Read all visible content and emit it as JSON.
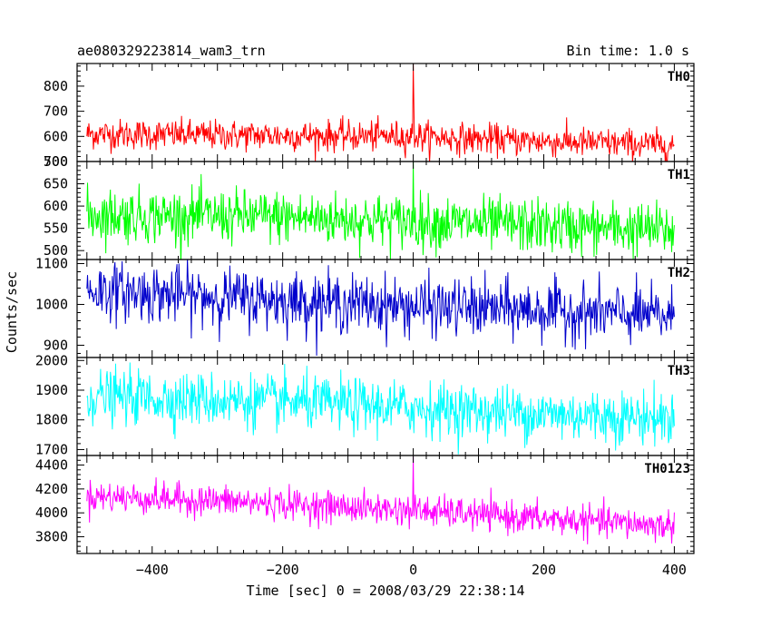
{
  "chart_data": {
    "type": "line",
    "title_left": "ae080329223814_wam3_trn",
    "title_right": "Bin time: 1.0 s",
    "xlabel": "Time [sec] 0 = 2008/03/29 22:38:14",
    "ylabel": "Counts/sec",
    "xlim": [
      -515,
      430
    ],
    "x_range_data": [
      -500,
      400
    ],
    "x_ticks": [
      -400,
      -200,
      0,
      200,
      400
    ],
    "x_tick_labels": [
      "−400",
      "−200",
      "0",
      "200",
      "400"
    ],
    "grid": false,
    "legend": "none",
    "panels": [
      {
        "name": "TH0",
        "color": "#ff0000",
        "ylim": [
          500,
          890
        ],
        "y_ticks": [
          500,
          600,
          700,
          800
        ],
        "trend": {
          "x": [
            -500,
            -300,
            0,
            200,
            400
          ],
          "y": [
            610,
            605,
            600,
            580,
            565
          ]
        },
        "noise": 30,
        "spikes": [
          {
            "x": 0,
            "y": 890
          },
          {
            "x": 1,
            "y": 720
          }
        ]
      },
      {
        "name": "TH1",
        "color": "#00ff00",
        "ylim": [
          480,
          700
        ],
        "y_ticks": [
          500,
          550,
          600,
          650,
          700
        ],
        "trend": {
          "x": [
            -500,
            -200,
            0,
            200,
            400
          ],
          "y": [
            580,
            575,
            565,
            555,
            545
          ]
        },
        "noise": 30,
        "spikes": [
          {
            "x": 0,
            "y": 700
          }
        ]
      },
      {
        "name": "TH2",
        "color": "#0000cc",
        "ylim": [
          870,
          1110
        ],
        "y_ticks": [
          900,
          1000,
          1100
        ],
        "trend": {
          "x": [
            -500,
            -200,
            0,
            200,
            400
          ],
          "y": [
            1035,
            1010,
            995,
            985,
            970
          ]
        },
        "noise": 35,
        "spikes": []
      },
      {
        "name": "TH3",
        "color": "#00ffff",
        "ylim": [
          1680,
          2010
        ],
        "y_ticks": [
          1700,
          1800,
          1900,
          2000
        ],
        "trend": {
          "x": [
            -500,
            -200,
            0,
            200,
            400
          ],
          "y": [
            1880,
            1860,
            1840,
            1820,
            1805
          ]
        },
        "noise": 45,
        "spikes": []
      },
      {
        "name": "TH0123",
        "color": "#ff00ff",
        "ylim": [
          3660,
          4480
        ],
        "y_ticks": [
          3800,
          4000,
          4200,
          4400
        ],
        "trend": {
          "x": [
            -500,
            -300,
            0,
            200,
            400
          ],
          "y": [
            4140,
            4100,
            4020,
            3950,
            3890
          ]
        },
        "noise": 65,
        "spikes": [
          {
            "x": 0,
            "y": 4470
          }
        ]
      }
    ]
  }
}
